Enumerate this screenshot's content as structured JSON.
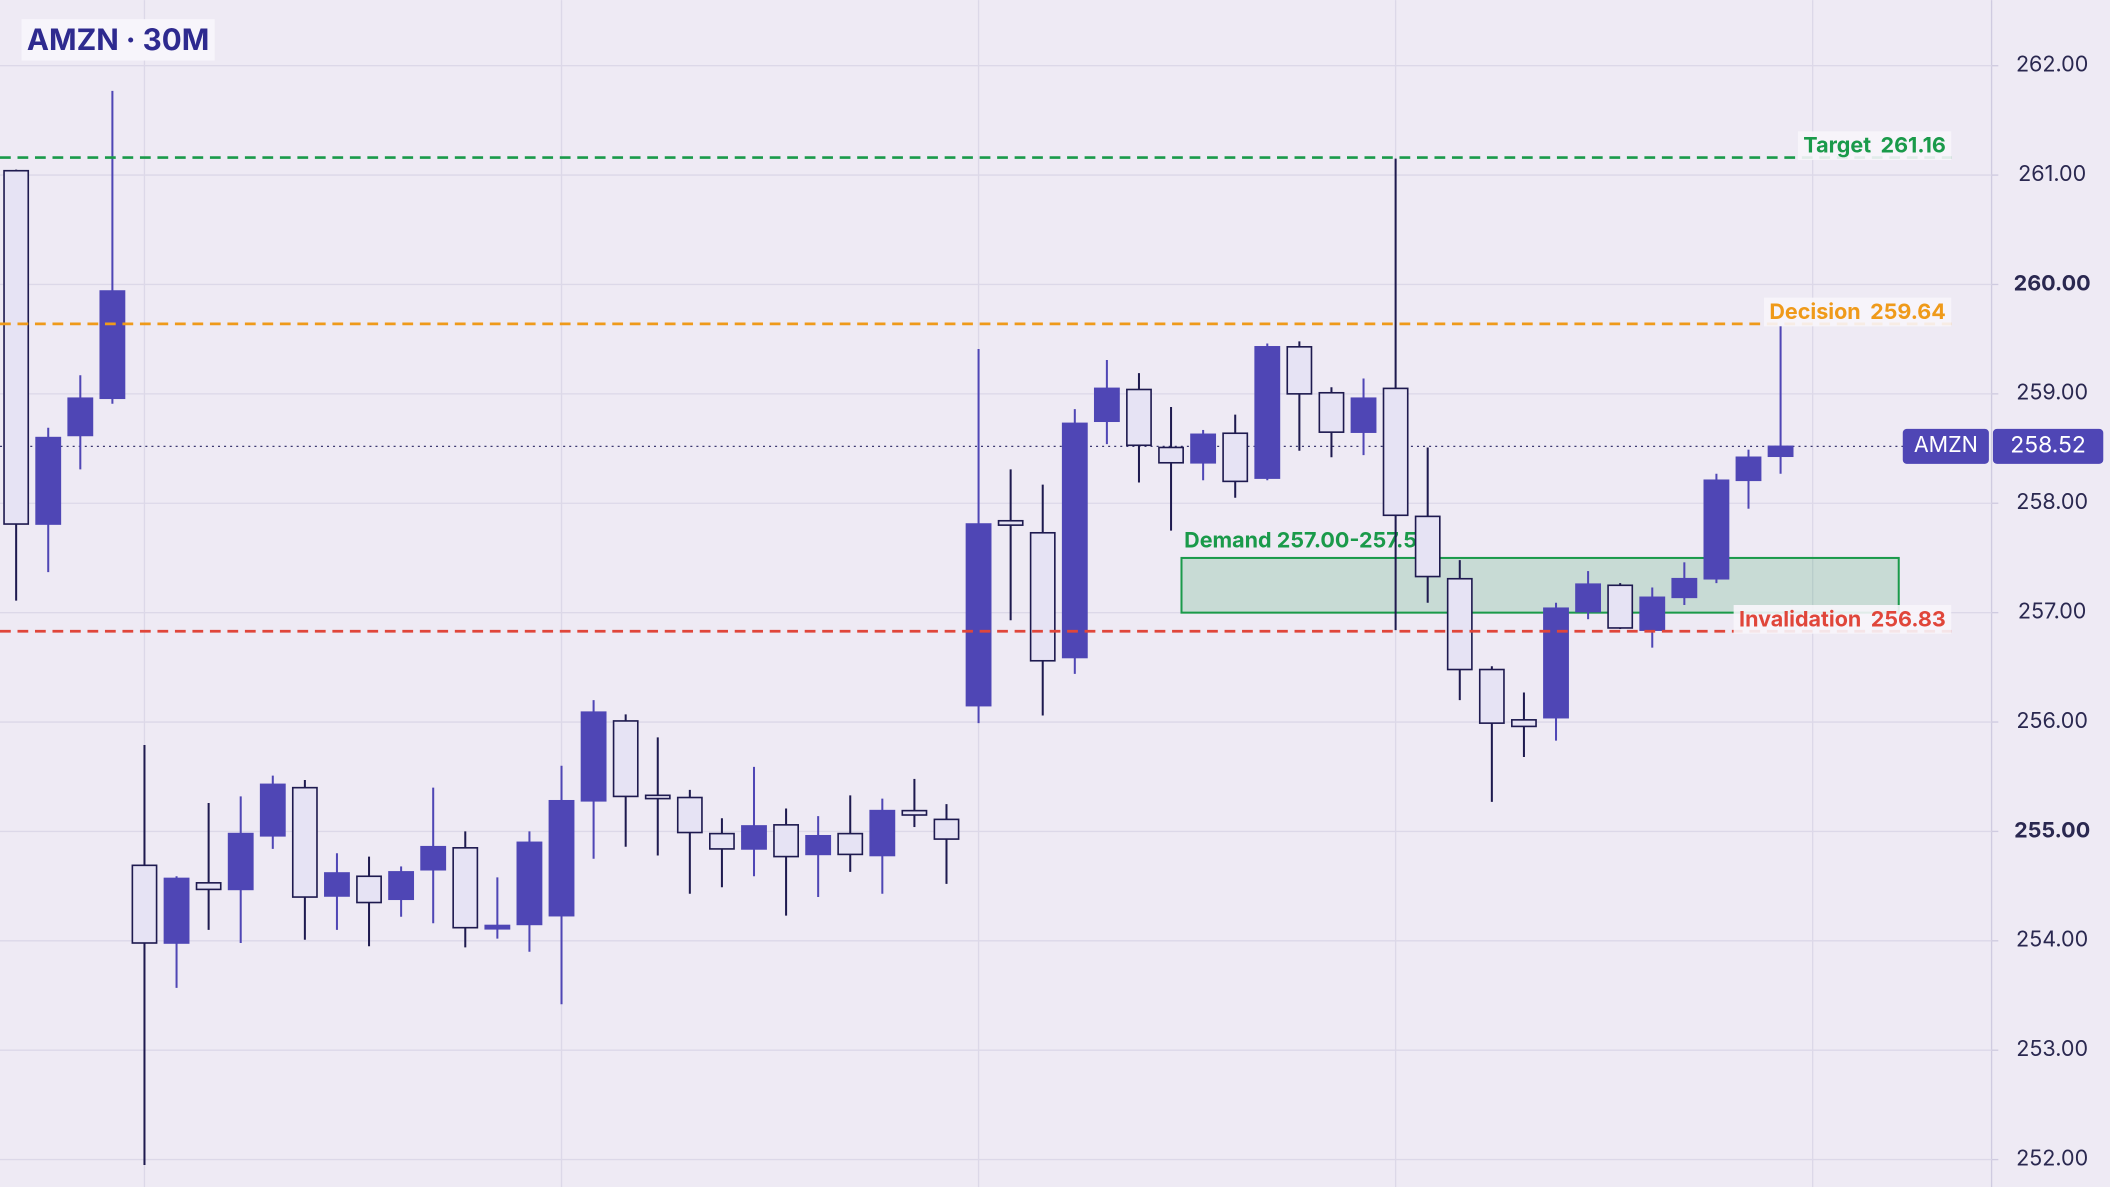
{
  "chart_data": {
    "type": "candlestick",
    "title": "AMZN · 30M",
    "symbol": "AMZN",
    "up_color": "#4f46b5",
    "down_color": "#e6e3f4",
    "outline_color": "#1e1a4f",
    "grid": true,
    "ylim": [
      251.75,
      262.6
    ],
    "yticks": [
      {
        "value": 252,
        "label": "252.00"
      },
      {
        "value": 253,
        "label": "253.00"
      },
      {
        "value": 254,
        "label": "254.00"
      },
      {
        "value": 255,
        "label": "255.00"
      },
      {
        "value": 256,
        "label": "256.00"
      },
      {
        "value": 257,
        "label": "257.00"
      },
      {
        "value": 258,
        "label": "258.00"
      },
      {
        "value": 259,
        "label": "259.00"
      },
      {
        "value": 260,
        "label": "260.00"
      },
      {
        "value": 261,
        "label": "261.00"
      },
      {
        "value": 262,
        "label": "262.00"
      }
    ],
    "open": [
      261.04,
      257.81,
      258.62,
      258.96,
      254.69,
      253.98,
      254.53,
      254.47,
      254.96,
      255.4,
      254.41,
      254.59,
      254.38,
      254.65,
      254.85,
      254.11,
      254.15,
      254.23,
      255.28,
      256.01,
      255.33,
      255.31,
      254.98,
      254.84,
      255.06,
      254.79,
      254.98,
      254.78,
      255.19,
      255.11,
      256.15,
      257.84,
      257.73,
      256.59,
      258.75,
      259.04,
      258.51,
      258.37,
      258.64,
      258.23,
      259.43,
      259.01,
      258.65,
      259.05,
      257.88,
      257.31,
      256.48,
      256.02,
      256.04,
      257.01,
      257.25,
      256.84,
      257.14,
      257.31,
      258.21,
      258.43
    ],
    "high": [
      261.05,
      258.69,
      259.17,
      261.77,
      255.79,
      254.59,
      255.26,
      255.32,
      255.51,
      255.47,
      254.8,
      254.77,
      254.68,
      255.4,
      255.0,
      254.58,
      255.0,
      255.6,
      256.2,
      256.07,
      255.86,
      255.38,
      255.12,
      255.59,
      255.21,
      255.14,
      255.33,
      255.3,
      255.48,
      255.25,
      259.41,
      258.31,
      258.17,
      258.86,
      259.31,
      259.19,
      258.88,
      258.67,
      258.81,
      259.46,
      259.48,
      259.06,
      259.14,
      261.15,
      258.51,
      257.48,
      256.51,
      256.27,
      257.09,
      257.38,
      257.27,
      257.23,
      257.46,
      258.27,
      258.49,
      259.62
    ],
    "low": [
      257.11,
      257.37,
      258.31,
      258.91,
      251.95,
      253.57,
      254.1,
      253.98,
      254.84,
      254.01,
      254.1,
      253.95,
      254.22,
      254.16,
      253.94,
      254.02,
      253.9,
      253.42,
      254.75,
      254.86,
      254.78,
      254.43,
      254.49,
      254.59,
      254.23,
      254.4,
      254.63,
      254.43,
      255.04,
      254.52,
      255.99,
      256.93,
      256.06,
      256.44,
      258.54,
      258.19,
      257.75,
      258.21,
      258.05,
      258.21,
      258.48,
      258.42,
      258.44,
      256.84,
      257.09,
      256.2,
      255.27,
      255.68,
      255.83,
      256.94,
      256.85,
      256.68,
      257.07,
      257.27,
      257.95,
      258.27
    ],
    "close": [
      257.81,
      258.6,
      258.96,
      259.94,
      253.98,
      254.57,
      254.47,
      254.98,
      255.43,
      254.4,
      254.62,
      254.35,
      254.63,
      254.86,
      254.12,
      254.14,
      254.9,
      255.28,
      256.09,
      255.32,
      255.3,
      254.99,
      254.84,
      255.05,
      254.77,
      254.96,
      254.79,
      255.19,
      255.15,
      254.93,
      257.81,
      257.8,
      256.56,
      258.73,
      259.05,
      258.53,
      258.37,
      258.63,
      258.2,
      259.43,
      259.0,
      258.65,
      258.96,
      257.89,
      257.33,
      256.48,
      255.99,
      255.96,
      257.04,
      257.26,
      256.86,
      257.14,
      257.31,
      258.21,
      258.42,
      258.52
    ],
    "last_price": 258.52,
    "levels": [
      {
        "label": "Target",
        "value": 261.16,
        "color": "#1a9a4a"
      },
      {
        "label": "Decision",
        "value": 259.64,
        "color": "#ef9a1a"
      },
      {
        "label": "Invalidation",
        "value": 256.83,
        "color": "#e0463a"
      }
    ],
    "zone": {
      "label": "Demand 257.00-257.50",
      "low": 257,
      "high": 257.5,
      "color": "#1a9a4a"
    }
  }
}
